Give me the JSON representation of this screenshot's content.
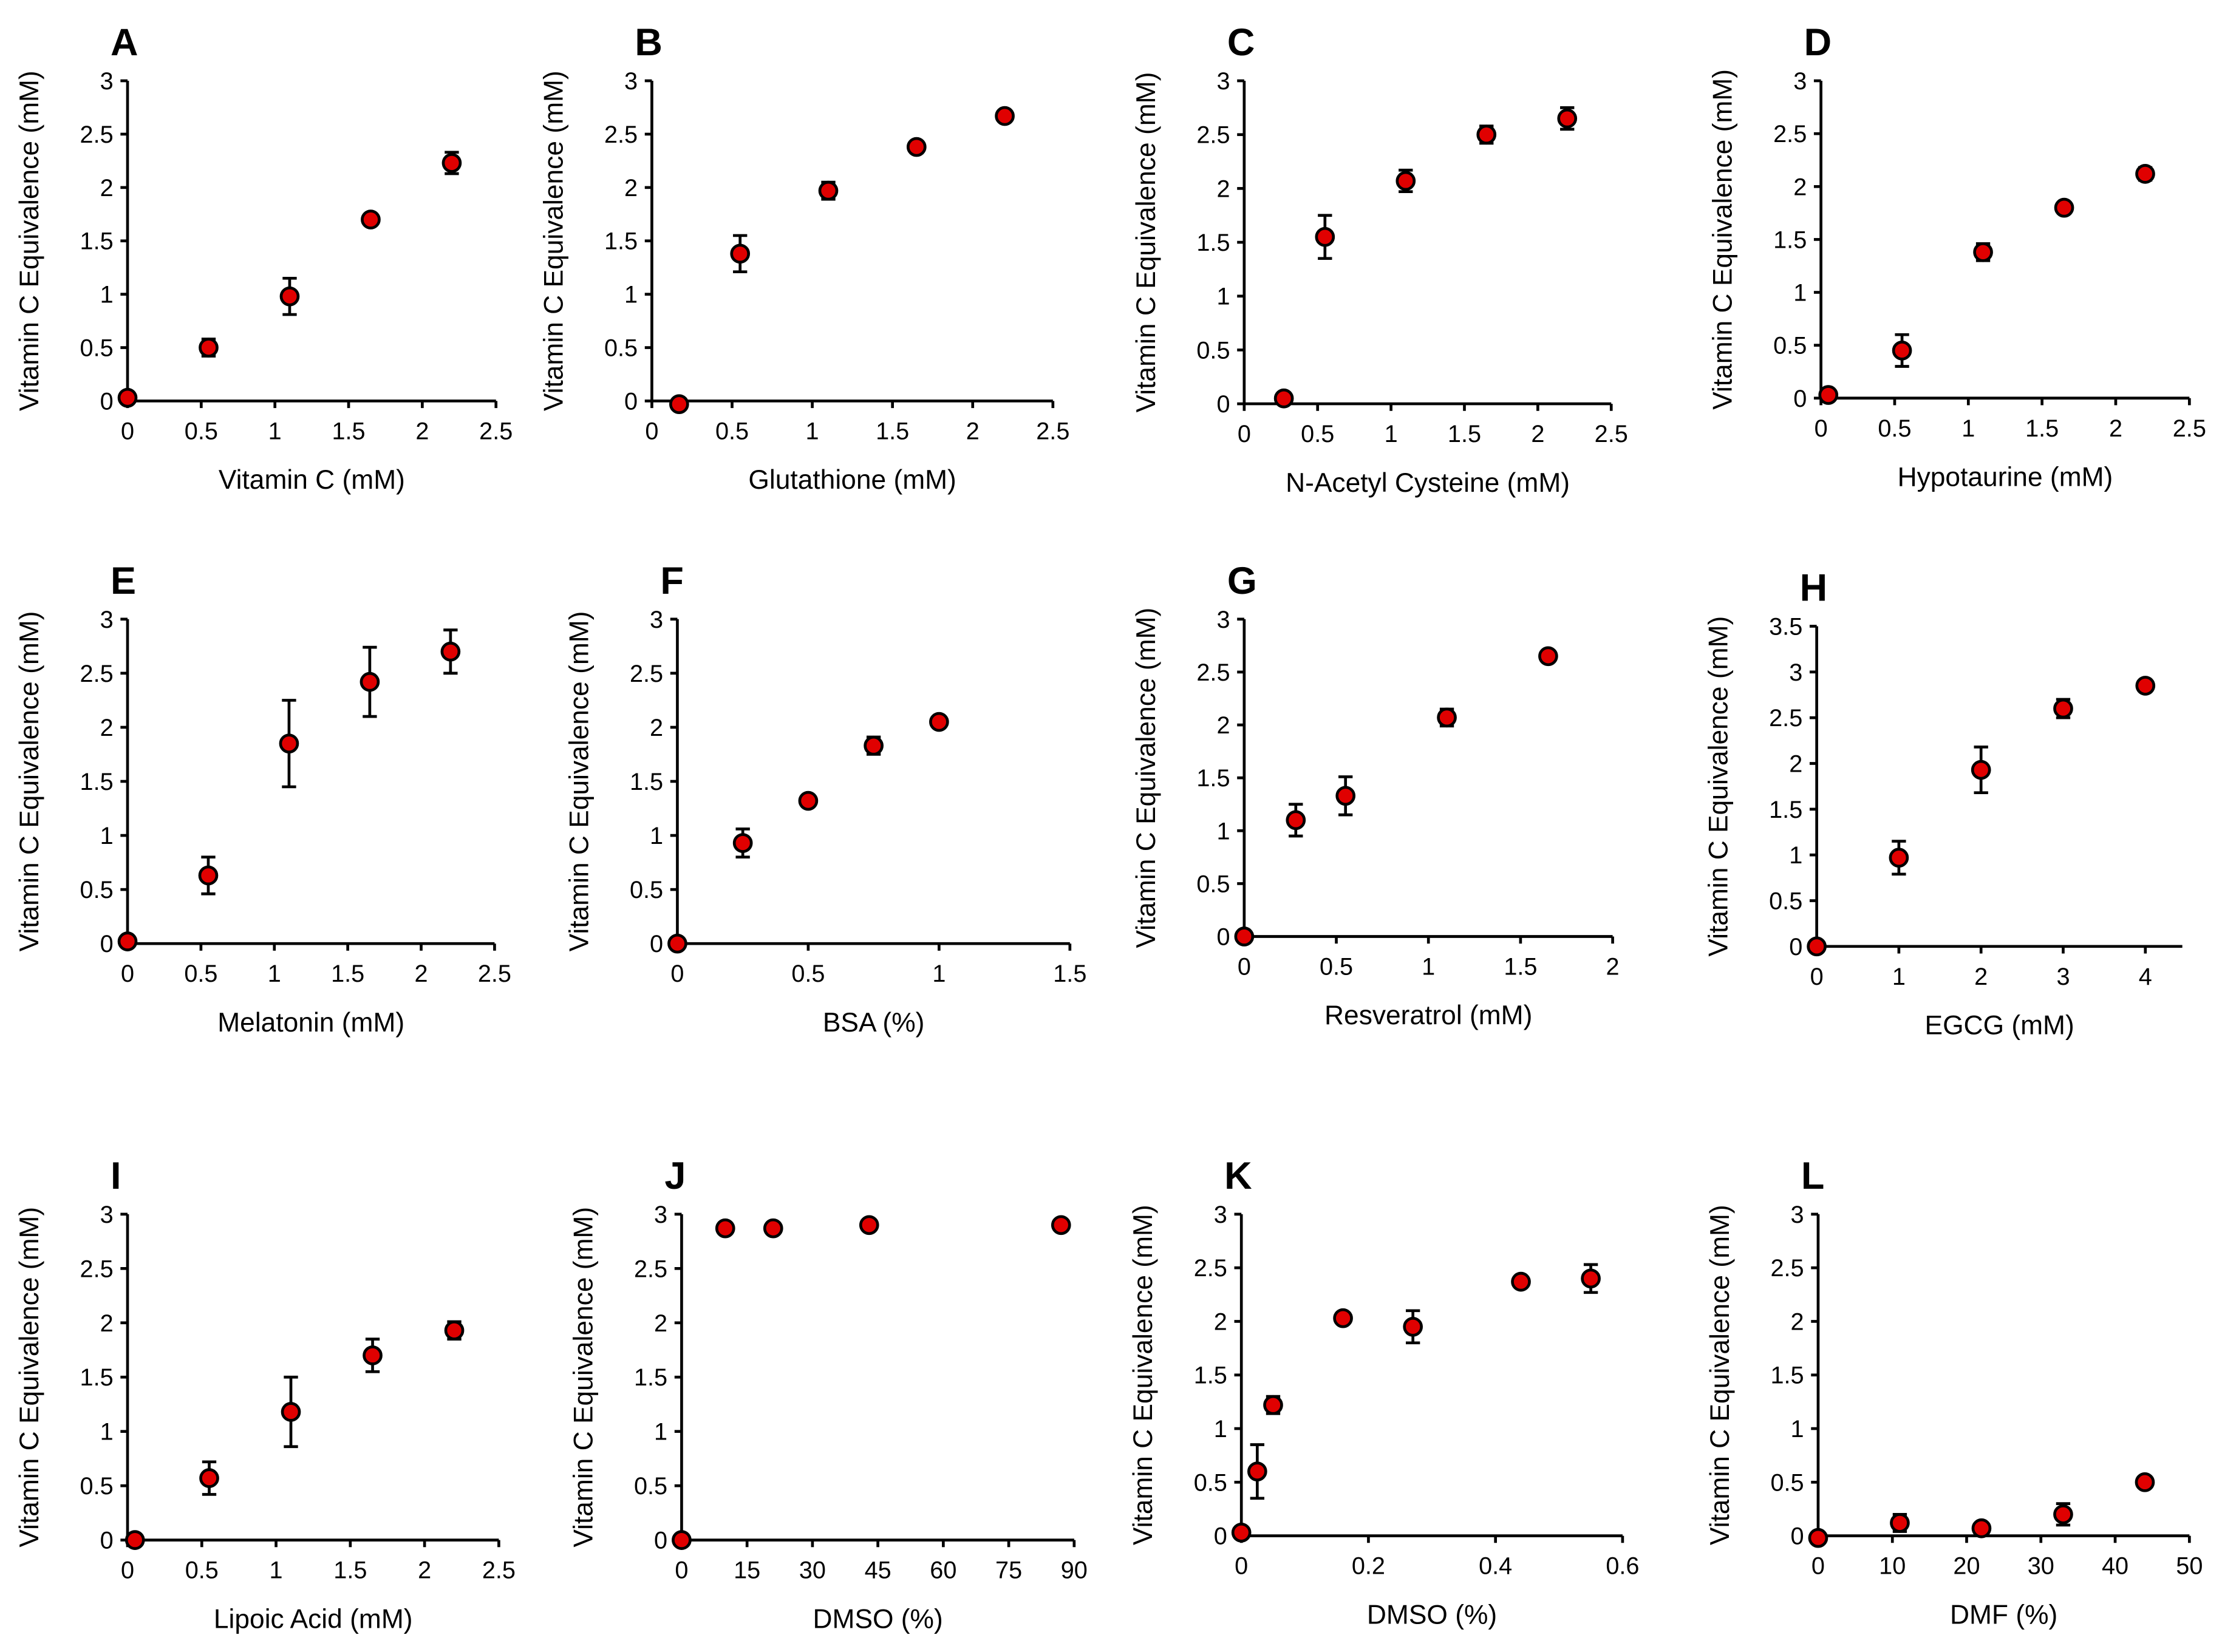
{
  "colors": {
    "marker": "#e00000",
    "axis": "#000000"
  },
  "chart_data": [
    {
      "panel": "A",
      "type": "scatter",
      "xlabel": "Vitamin C (mM)",
      "ylabel": "Vitamin C Equivalence (mM)",
      "xlim": [
        0,
        2.5
      ],
      "xstep": 0.5,
      "ylim": [
        0,
        3
      ],
      "ystep": 0.5,
      "x": [
        0,
        0.55,
        1.1,
        1.65,
        2.2
      ],
      "y": [
        0.03,
        0.5,
        0.98,
        1.7,
        2.23
      ],
      "err": [
        0.02,
        0.08,
        0.17,
        0.03,
        0.1
      ]
    },
    {
      "panel": "B",
      "type": "scatter",
      "xlabel": "Glutathione (mM)",
      "ylabel": "Vitamin C  Equivalence (mM)",
      "xlim": [
        0,
        2.5
      ],
      "xstep": 0.5,
      "ylim": [
        0,
        3
      ],
      "ystep": 0.5,
      "x": [
        0.17,
        0.55,
        1.1,
        1.65,
        2.2
      ],
      "y": [
        -0.03,
        1.38,
        1.97,
        2.38,
        2.67
      ],
      "err": [
        0.02,
        0.17,
        0.08,
        0.03,
        0.05
      ]
    },
    {
      "panel": "C",
      "type": "scatter",
      "xlabel": "N-Acetyl Cysteine (mM)",
      "ylabel": "Vitamin C  Equivalence (mM)",
      "xlim": [
        0,
        2.5
      ],
      "xstep": 0.5,
      "ylim": [
        0,
        3
      ],
      "ystep": 0.5,
      "x": [
        0.27,
        0.55,
        1.1,
        1.65,
        2.2
      ],
      "y": [
        0.05,
        1.55,
        2.07,
        2.5,
        2.65
      ],
      "err": [
        0.03,
        0.2,
        0.1,
        0.08,
        0.1
      ]
    },
    {
      "panel": "D",
      "type": "scatter",
      "xlabel": "Hypotaurine (mM)",
      "ylabel": "Vitamin C Equivalence (mM)",
      "xlim": [
        0,
        2.5
      ],
      "xstep": 0.5,
      "ylim": [
        0,
        3
      ],
      "ystep": 0.5,
      "x": [
        0.05,
        0.55,
        1.1,
        1.65,
        2.2
      ],
      "y": [
        0.03,
        0.45,
        1.38,
        1.8,
        2.12
      ],
      "err": [
        0.02,
        0.15,
        0.08,
        0.03,
        0.06
      ]
    },
    {
      "panel": "E",
      "type": "scatter",
      "xlabel": "Melatonin (mM)",
      "ylabel": "Vitamin C  Equivalence (mM)",
      "xlim": [
        0,
        2.5
      ],
      "xstep": 0.5,
      "ylim": [
        0,
        3
      ],
      "ystep": 0.5,
      "x": [
        0,
        0.55,
        1.1,
        1.65,
        2.2
      ],
      "y": [
        0.02,
        0.63,
        1.85,
        2.42,
        2.7
      ],
      "err": [
        0.02,
        0.17,
        0.4,
        0.32,
        0.2
      ]
    },
    {
      "panel": "F",
      "type": "scatter",
      "xlabel": "BSA (%)",
      "ylabel": "Vitamin C  Equivalence (mM)",
      "xlim": [
        0,
        1.5
      ],
      "xstep": 0.5,
      "ylim": [
        0,
        3
      ],
      "ystep": 0.5,
      "x": [
        0,
        0.25,
        0.5,
        0.75,
        1
      ],
      "y": [
        0,
        0.93,
        1.32,
        1.83,
        2.05
      ],
      "err": [
        0,
        0.13,
        0.05,
        0.08,
        0.03
      ]
    },
    {
      "panel": "G",
      "type": "scatter",
      "xlabel": "Resveratrol (mM)",
      "ylabel": "Vitamin C  Equivalence (mM)",
      "xlim": [
        0,
        2
      ],
      "xstep": 0.5,
      "ylim": [
        0,
        3
      ],
      "ystep": 0.5,
      "x": [
        0,
        0.28,
        0.55,
        1.1,
        1.65
      ],
      "y": [
        0,
        1.1,
        1.33,
        2.07,
        2.65
      ],
      "err": [
        0,
        0.15,
        0.18,
        0.08,
        0.03
      ]
    },
    {
      "panel": "H",
      "type": "scatter",
      "xlabel": "EGCG (mM)",
      "ylabel": "Vitamin C  Equivalence (mM)",
      "xlim": [
        0,
        4.45
      ],
      "xstep": 1,
      "xmaxtick": 4,
      "ylim": [
        0,
        3.5
      ],
      "ystep": 0.5,
      "x": [
        0,
        1,
        2,
        3,
        4
      ],
      "y": [
        0,
        0.97,
        1.93,
        2.6,
        2.85
      ],
      "err": [
        0,
        0.18,
        0.25,
        0.1,
        0.05
      ]
    },
    {
      "panel": "I",
      "type": "scatter",
      "xlabel": "Lipoic Acid (mM)",
      "ylabel": "Vitamin C  Equivalence (mM)",
      "xlim": [
        0,
        2.5
      ],
      "xstep": 0.5,
      "ylim": [
        0,
        3
      ],
      "ystep": 0.5,
      "x": [
        0.05,
        0.55,
        1.1,
        1.65,
        2.2
      ],
      "y": [
        0,
        0.57,
        1.18,
        1.7,
        1.93
      ],
      "err": [
        0,
        0.15,
        0.32,
        0.15,
        0.08
      ]
    },
    {
      "panel": "J",
      "type": "scatter",
      "xlabel": "DMSO (%)",
      "ylabel": "Vitamin C Equivalence (mM)",
      "xlim": [
        0,
        90
      ],
      "xstep": 15,
      "ylim": [
        0,
        3
      ],
      "ystep": 0.5,
      "x": [
        0,
        10,
        21,
        43,
        87
      ],
      "y": [
        0,
        2.87,
        2.87,
        2.9,
        2.9
      ],
      "err": [
        0,
        0.03,
        0.03,
        0.03,
        0.03
      ]
    },
    {
      "panel": "K",
      "type": "scatter",
      "xlabel": "DMSO (%)",
      "ylabel": "Vitamin C Equivalence (mM)",
      "xlim": [
        0,
        0.6
      ],
      "xstep": 0.2,
      "ylim": [
        0,
        3
      ],
      "ystep": 0.5,
      "x": [
        0,
        0.025,
        0.05,
        0.16,
        0.27,
        0.44,
        0.55
      ],
      "y": [
        0.03,
        0.6,
        1.22,
        2.03,
        1.95,
        2.37,
        2.4
      ],
      "err": [
        0.02,
        0.25,
        0.08,
        0.03,
        0.15,
        0.03,
        0.13
      ]
    },
    {
      "panel": "L",
      "type": "scatter",
      "xlabel": "DMF (%)",
      "ylabel": "Vitamin C Equivalence (mM)",
      "xlim": [
        0,
        50
      ],
      "xstep": 10,
      "ylim": [
        0,
        3
      ],
      "ystep": 0.5,
      "x": [
        0,
        11,
        22,
        33,
        44
      ],
      "y": [
        -0.02,
        0.12,
        0.07,
        0.2,
        0.5
      ],
      "err": [
        0.02,
        0.08,
        0.02,
        0.1,
        0.02
      ]
    }
  ]
}
